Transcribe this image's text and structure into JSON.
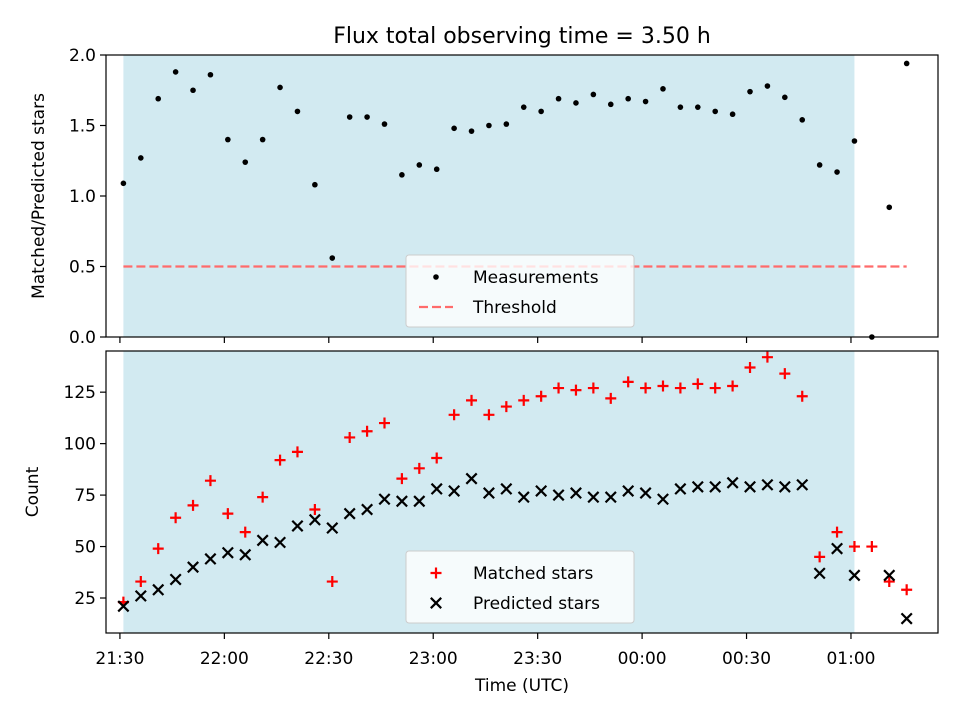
{
  "chart_data": {
    "type": "scatter",
    "title": "Flux total observing time = 3.50 h",
    "xlabel": "Time (UTC)",
    "x_range": [
      "21:26",
      "01:25"
    ],
    "x_ticks": [
      "21:30",
      "22:00",
      "22:30",
      "23:00",
      "23:30",
      "00:00",
      "00:30",
      "01:00"
    ],
    "observing_window": {
      "start": "21:31",
      "end": "01:01"
    },
    "colors": {
      "window": "#add8e6",
      "matched": "#ff0000",
      "predicted": "#000000",
      "threshold": "#ff6b6b"
    },
    "panels": [
      {
        "ylabel": "Matched/Predicted stars",
        "ylim": [
          0,
          2.0
        ],
        "y_ticks": [
          "0.0",
          "0.5",
          "1.0",
          "1.5",
          "2.0"
        ],
        "legend": {
          "position": "bottom-center",
          "entries": [
            "Measurements",
            "Threshold"
          ]
        },
        "threshold": {
          "name": "Threshold",
          "value": 0.5,
          "x": [
            "21:31",
            "01:16"
          ]
        },
        "series": [
          {
            "name": "Measurements",
            "marker": "dot",
            "points": [
              [
                "21:31",
                1.09
              ],
              [
                "21:36",
                1.27
              ],
              [
                "21:41",
                1.69
              ],
              [
                "21:46",
                1.88
              ],
              [
                "21:51",
                1.75
              ],
              [
                "21:56",
                1.86
              ],
              [
                "22:01",
                1.4
              ],
              [
                "22:06",
                1.24
              ],
              [
                "22:11",
                1.4
              ],
              [
                "22:16",
                1.77
              ],
              [
                "22:21",
                1.6
              ],
              [
                "22:26",
                1.08
              ],
              [
                "22:31",
                0.56
              ],
              [
                "22:36",
                1.56
              ],
              [
                "22:41",
                1.56
              ],
              [
                "22:46",
                1.51
              ],
              [
                "22:51",
                1.15
              ],
              [
                "22:56",
                1.22
              ],
              [
                "23:01",
                1.19
              ],
              [
                "23:06",
                1.48
              ],
              [
                "23:11",
                1.46
              ],
              [
                "23:16",
                1.5
              ],
              [
                "23:21",
                1.51
              ],
              [
                "23:26",
                1.63
              ],
              [
                "23:31",
                1.6
              ],
              [
                "23:36",
                1.69
              ],
              [
                "23:41",
                1.66
              ],
              [
                "23:46",
                1.72
              ],
              [
                "23:51",
                1.65
              ],
              [
                "23:56",
                1.69
              ],
              [
                "00:01",
                1.67
              ],
              [
                "00:06",
                1.76
              ],
              [
                "00:11",
                1.63
              ],
              [
                "00:16",
                1.63
              ],
              [
                "00:21",
                1.6
              ],
              [
                "00:26",
                1.58
              ],
              [
                "00:31",
                1.74
              ],
              [
                "00:36",
                1.78
              ],
              [
                "00:41",
                1.7
              ],
              [
                "00:46",
                1.54
              ],
              [
                "00:51",
                1.22
              ],
              [
                "00:56",
                1.17
              ],
              [
                "01:01",
                1.39
              ],
              [
                "01:06",
                0.0
              ],
              [
                "01:11",
                0.92
              ],
              [
                "01:16",
                1.94
              ]
            ]
          }
        ]
      },
      {
        "ylabel": "Count",
        "ylim": [
          8,
          145
        ],
        "y_ticks": [
          "25",
          "50",
          "75",
          "100",
          "125"
        ],
        "legend": {
          "position": "bottom-center",
          "entries": [
            "Matched stars",
            "Predicted stars"
          ]
        },
        "series": [
          {
            "name": "Matched stars",
            "marker": "plus",
            "points": [
              [
                "21:31",
                23
              ],
              [
                "21:36",
                33
              ],
              [
                "21:41",
                49
              ],
              [
                "21:46",
                64
              ],
              [
                "21:51",
                70
              ],
              [
                "21:56",
                82
              ],
              [
                "22:01",
                66
              ],
              [
                "22:06",
                57
              ],
              [
                "22:11",
                74
              ],
              [
                "22:16",
                92
              ],
              [
                "22:21",
                96
              ],
              [
                "22:26",
                68
              ],
              [
                "22:31",
                33
              ],
              [
                "22:36",
                103
              ],
              [
                "22:41",
                106
              ],
              [
                "22:46",
                110
              ],
              [
                "22:51",
                83
              ],
              [
                "22:56",
                88
              ],
              [
                "23:01",
                93
              ],
              [
                "23:06",
                114
              ],
              [
                "23:11",
                121
              ],
              [
                "23:16",
                114
              ],
              [
                "23:21",
                118
              ],
              [
                "23:26",
                121
              ],
              [
                "23:31",
                123
              ],
              [
                "23:36",
                127
              ],
              [
                "23:41",
                126
              ],
              [
                "23:46",
                127
              ],
              [
                "23:51",
                122
              ],
              [
                "23:56",
                130
              ],
              [
                "00:01",
                127
              ],
              [
                "00:06",
                128
              ],
              [
                "00:11",
                127
              ],
              [
                "00:16",
                129
              ],
              [
                "00:21",
                127
              ],
              [
                "00:26",
                128
              ],
              [
                "00:31",
                137
              ],
              [
                "00:36",
                142
              ],
              [
                "00:41",
                134
              ],
              [
                "00:46",
                123
              ],
              [
                "00:51",
                45
              ],
              [
                "00:56",
                57
              ],
              [
                "01:01",
                50
              ],
              [
                "01:06",
                50
              ],
              [
                "01:11",
                33
              ],
              [
                "01:16",
                29
              ]
            ]
          },
          {
            "name": "Predicted stars",
            "marker": "x",
            "points": [
              [
                "21:31",
                21
              ],
              [
                "21:36",
                26
              ],
              [
                "21:41",
                29
              ],
              [
                "21:46",
                34
              ],
              [
                "21:51",
                40
              ],
              [
                "21:56",
                44
              ],
              [
                "22:01",
                47
              ],
              [
                "22:06",
                46
              ],
              [
                "22:11",
                53
              ],
              [
                "22:16",
                52
              ],
              [
                "22:21",
                60
              ],
              [
                "22:26",
                63
              ],
              [
                "22:31",
                59
              ],
              [
                "22:36",
                66
              ],
              [
                "22:41",
                68
              ],
              [
                "22:46",
                73
              ],
              [
                "22:51",
                72
              ],
              [
                "22:56",
                72
              ],
              [
                "23:01",
                78
              ],
              [
                "23:06",
                77
              ],
              [
                "23:11",
                83
              ],
              [
                "23:16",
                76
              ],
              [
                "23:21",
                78
              ],
              [
                "23:26",
                74
              ],
              [
                "23:31",
                77
              ],
              [
                "23:36",
                75
              ],
              [
                "23:41",
                76
              ],
              [
                "23:46",
                74
              ],
              [
                "23:51",
                74
              ],
              [
                "23:56",
                77
              ],
              [
                "00:01",
                76
              ],
              [
                "00:06",
                73
              ],
              [
                "00:11",
                78
              ],
              [
                "00:16",
                79
              ],
              [
                "00:21",
                79
              ],
              [
                "00:26",
                81
              ],
              [
                "00:31",
                79
              ],
              [
                "00:36",
                80
              ],
              [
                "00:41",
                79
              ],
              [
                "00:46",
                80
              ],
              [
                "00:51",
                37
              ],
              [
                "00:56",
                49
              ],
              [
                "01:01",
                36
              ],
              [
                "01:11",
                36
              ],
              [
                "01:16",
                15
              ]
            ]
          }
        ]
      }
    ]
  }
}
